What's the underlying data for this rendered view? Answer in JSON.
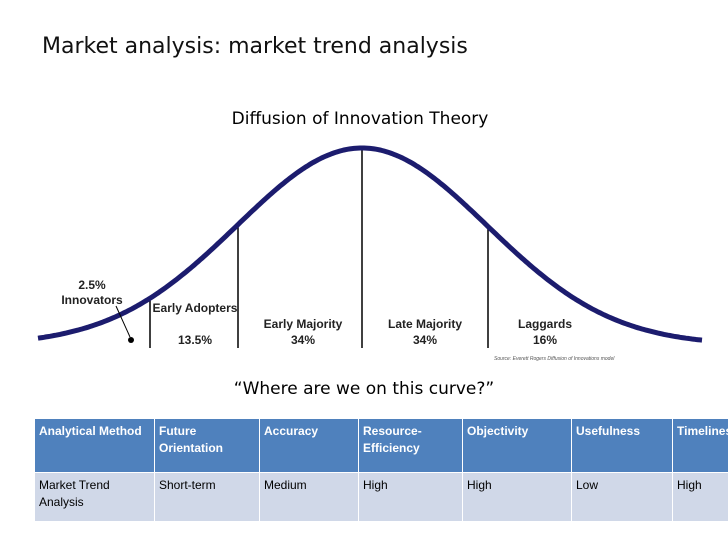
{
  "header": {
    "title": "Market analysis: market trend analysis"
  },
  "diagram": {
    "title": "Diffusion of Innovation Theory",
    "segments": [
      {
        "label": "Innovators",
        "share": "2.5%"
      },
      {
        "label": "Early Adopters",
        "share": "13.5%"
      },
      {
        "label": "Early Majority",
        "share": "34%"
      },
      {
        "label": "Late Majority",
        "share": "34%"
      },
      {
        "label": "Laggards",
        "share": "16%"
      }
    ],
    "source": "Source: Everett Rogers Diffusion of Innovations model",
    "question": "“Where are we on this curve?”"
  },
  "table": {
    "header": [
      "Analytical Method",
      "Future Orientation",
      "Accuracy",
      "Resource-Efficiency",
      "Objectivity",
      "Usefulness",
      "Timeliness"
    ],
    "rows": [
      [
        "Market Trend Analysis",
        "Short-term",
        "Medium",
        "High",
        "High",
        "Low",
        "High"
      ]
    ]
  }
}
